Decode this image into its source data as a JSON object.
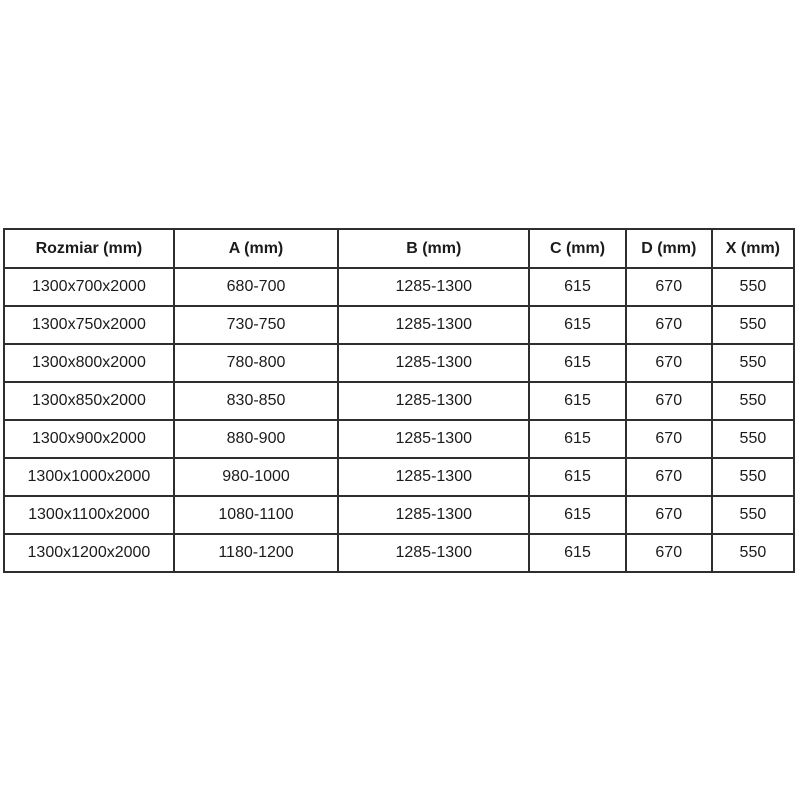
{
  "colors": {
    "background": "#ffffff",
    "border": "#2e2e2e",
    "text": "#1b1b1b"
  },
  "table": {
    "columns": [
      "Rozmiar (mm)",
      "A (mm)",
      "B (mm)",
      "C (mm)",
      "D (mm)",
      "X (mm)"
    ],
    "rows": [
      [
        "1300x700x2000",
        "680-700",
        "1285-1300",
        "615",
        "670",
        "550"
      ],
      [
        "1300x750x2000",
        "730-750",
        "1285-1300",
        "615",
        "670",
        "550"
      ],
      [
        "1300x800x2000",
        "780-800",
        "1285-1300",
        "615",
        "670",
        "550"
      ],
      [
        "1300x850x2000",
        "830-850",
        "1285-1300",
        "615",
        "670",
        "550"
      ],
      [
        "1300x900x2000",
        "880-900",
        "1285-1300",
        "615",
        "670",
        "550"
      ],
      [
        "1300x1000x2000",
        "980-1000",
        "1285-1300",
        "615",
        "670",
        "550"
      ],
      [
        "1300x1100x2000",
        "1080-1100",
        "1285-1300",
        "615",
        "670",
        "550"
      ],
      [
        "1300x1200x2000",
        "1180-1200",
        "1285-1300",
        "615",
        "670",
        "550"
      ]
    ]
  }
}
